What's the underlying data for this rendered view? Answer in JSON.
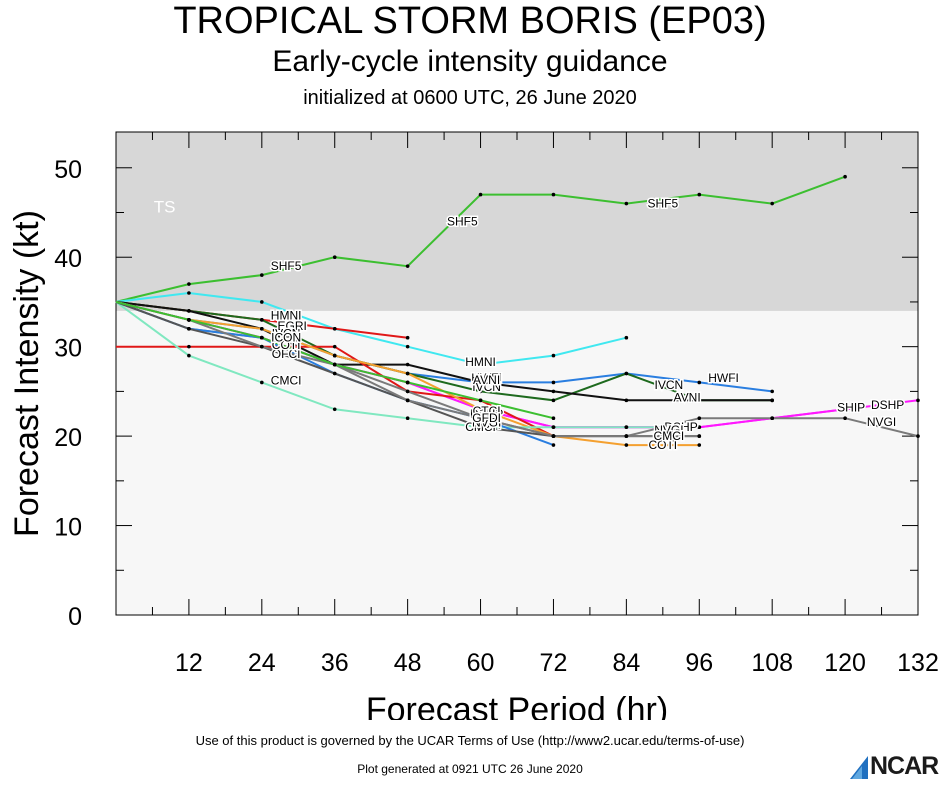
{
  "header": {
    "title": "TROPICAL STORM BORIS (EP03)",
    "subtitle": "Early-cycle intensity guidance",
    "init": "initialized at 0600 UTC, 26 June 2020"
  },
  "footer": {
    "terms": "Use of this product is governed by the UCAR Terms of Use (http://www2.ucar.edu/terms-of-use)",
    "generated": "Plot generated at 0921 UTC   26 June 2020",
    "logo": "NCAR"
  },
  "chart_data": {
    "type": "line",
    "xlabel": "Forecast Period (hr)",
    "ylabel": "Forecast Intensity (kt)",
    "xlim": [
      0,
      132
    ],
    "ylim": [
      0,
      54
    ],
    "xticks": [
      12,
      24,
      36,
      48,
      60,
      72,
      84,
      96,
      108,
      120,
      132
    ],
    "yticks": [
      0,
      10,
      20,
      30,
      40,
      50
    ],
    "bands": [
      {
        "label": "TS",
        "from": 34,
        "to": 54,
        "color": "#d7d7d7"
      }
    ],
    "plot_bg": "#f7f7f7",
    "series": [
      {
        "name": "SHF5",
        "color": "#3cbf30",
        "x": [
          0,
          12,
          24,
          36,
          48,
          60,
          72,
          84,
          96,
          108,
          120
        ],
        "y": [
          35,
          37,
          38,
          40,
          39,
          47,
          47,
          46,
          47,
          46,
          49
        ],
        "labels": [
          [
            28,
            39
          ],
          [
            57,
            44
          ],
          [
            90,
            46
          ]
        ]
      },
      {
        "name": "HMNI",
        "color": "#40e8f0",
        "x": [
          0,
          12,
          24,
          36,
          48,
          60,
          72,
          84
        ],
        "y": [
          35,
          36,
          35,
          32,
          30,
          28,
          29,
          31
        ],
        "labels": [
          [
            28,
            33.5
          ],
          [
            60,
            28.3
          ]
        ]
      },
      {
        "name": "EGRI",
        "color": "#e01818",
        "x": [
          0,
          12,
          24,
          36,
          48
        ],
        "y": [
          35,
          34,
          33,
          32,
          31
        ],
        "labels": [
          [
            29,
            32.3
          ]
        ]
      },
      {
        "name": "HWFI",
        "color": "#2a7ee0",
        "x": [
          0,
          12,
          24,
          36,
          48,
          60,
          72,
          84,
          96,
          108
        ],
        "y": [
          35,
          33,
          32,
          29,
          27,
          26,
          26,
          27,
          26,
          25
        ],
        "labels": [
          [
            61,
            26.5
          ],
          [
            100,
            26.5
          ]
        ]
      },
      {
        "name": "IVCN",
        "color": "#1e6a1e",
        "x": [
          0,
          12,
          24,
          36,
          48,
          60,
          72,
          84,
          96,
          108
        ],
        "y": [
          35,
          34,
          33,
          29,
          27,
          25,
          24,
          27,
          24,
          24
        ],
        "labels": [
          [
            28,
            31.5
          ],
          [
            61,
            25.5
          ],
          [
            91,
            25.7
          ]
        ]
      },
      {
        "name": "AVNI",
        "color": "#111111",
        "x": [
          0,
          12,
          24,
          36,
          48,
          60,
          72,
          84,
          96,
          108
        ],
        "y": [
          35,
          34,
          32,
          28,
          28,
          26,
          25,
          24,
          24,
          24
        ],
        "labels": [
          [
            61,
            26.3
          ],
          [
            94,
            24.3
          ]
        ]
      },
      {
        "name": "DSHP",
        "color": "#ff18ff",
        "x": [
          0,
          12,
          24,
          36,
          48,
          60,
          72,
          84,
          96,
          108,
          120,
          132
        ],
        "y": [
          35,
          33,
          31,
          28,
          26,
          23,
          21,
          21,
          21,
          22,
          23,
          24
        ],
        "labels": [
          [
            61,
            22.5
          ],
          [
            93,
            21
          ],
          [
            127,
            23.5
          ]
        ]
      },
      {
        "name": "SHIP",
        "color": "#ff18ff",
        "x": [
          0,
          12,
          24,
          36,
          48,
          60,
          72,
          84,
          96,
          108,
          120
        ],
        "y": [
          35,
          33,
          31,
          28,
          26,
          23,
          21,
          21,
          21,
          22,
          23
        ],
        "labels": [
          [
            121,
            23.2
          ]
        ]
      },
      {
        "name": "OFCI",
        "color": "#e01818",
        "x": [
          0,
          12,
          24,
          36,
          48,
          60,
          72
        ],
        "y": [
          30,
          30,
          30,
          30,
          25,
          24,
          20
        ],
        "labels": [
          [
            28,
            29.2
          ],
          [
            61,
            21.8
          ]
        ]
      },
      {
        "name": "COTI",
        "color": "#f4a030",
        "x": [
          0,
          12,
          24,
          36,
          48,
          60,
          72,
          84,
          96
        ],
        "y": [
          35,
          33,
          32,
          29,
          27,
          23,
          20,
          19,
          19
        ],
        "labels": [
          [
            28,
            30.2
          ],
          [
            61,
            21.3
          ],
          [
            90,
            19
          ]
        ]
      },
      {
        "name": "CMCI",
        "color": "#80e8c0",
        "x": [
          0,
          12,
          24,
          36,
          48,
          60,
          72,
          84,
          96
        ],
        "y": [
          35,
          29,
          26,
          23,
          22,
          21,
          21,
          21,
          21
        ],
        "labels": [
          [
            28,
            26.2
          ],
          [
            60,
            21
          ]
        ]
      },
      {
        "name": "NVGI",
        "color": "#7a7a7a",
        "x": [
          0,
          12,
          24,
          36,
          48,
          60,
          72,
          84,
          96,
          108,
          120,
          132
        ],
        "y": [
          35,
          32,
          31,
          28,
          25,
          22,
          20,
          20,
          22,
          22,
          22,
          20
        ],
        "labels": [
          [
            61,
            21.5
          ],
          [
            91,
            20.7
          ],
          [
            126,
            21.6
          ]
        ]
      },
      {
        "name": "CTCI",
        "color": "#2a7ee0",
        "x": [
          0,
          12,
          24,
          36,
          48,
          60,
          72
        ],
        "y": [
          35,
          32,
          31,
          27,
          24,
          22,
          19
        ],
        "labels": [
          [
            61,
            22.8
          ]
        ]
      },
      {
        "name": "GFDI",
        "color": "#555555",
        "x": [
          0,
          12,
          24,
          36,
          48,
          60,
          72,
          84,
          96
        ],
        "y": [
          35,
          32,
          30,
          27,
          24,
          21,
          20,
          20,
          20
        ],
        "labels": [
          [
            61,
            22
          ]
        ]
      },
      {
        "name": "CMCI2",
        "color": "#7a7a7a",
        "x": [
          0,
          12,
          24,
          36,
          48,
          60,
          72,
          84,
          96
        ],
        "y": [
          35,
          33,
          30,
          28,
          24,
          22,
          20,
          20,
          20
        ],
        "labels": [
          [
            91,
            20
          ]
        ]
      },
      {
        "name": "ICON",
        "color": "#3cbf30",
        "x": [
          0,
          12,
          24,
          36,
          48,
          60,
          72
        ],
        "y": [
          35,
          33,
          31,
          28,
          26,
          24,
          22
        ],
        "labels": [
          [
            28,
            31
          ]
        ]
      }
    ],
    "label_text": {
      "SHF5": "SHF5",
      "HMNI": "HMNI",
      "EGRI": "EGRI",
      "HWFI": "HWFI",
      "IVCN": "IVCN",
      "AVNI": "AVNI",
      "DSHP": "DSHP",
      "SHIP": "SHIP",
      "OFCI": "OFCI",
      "COTI": "COTI",
      "CMCI": "CMCI",
      "NVGI": "NVGI",
      "CTCI": "CTCI",
      "GFDI": "GFDI",
      "CMCI2": "CMCI",
      "ICON": "ICON"
    }
  }
}
